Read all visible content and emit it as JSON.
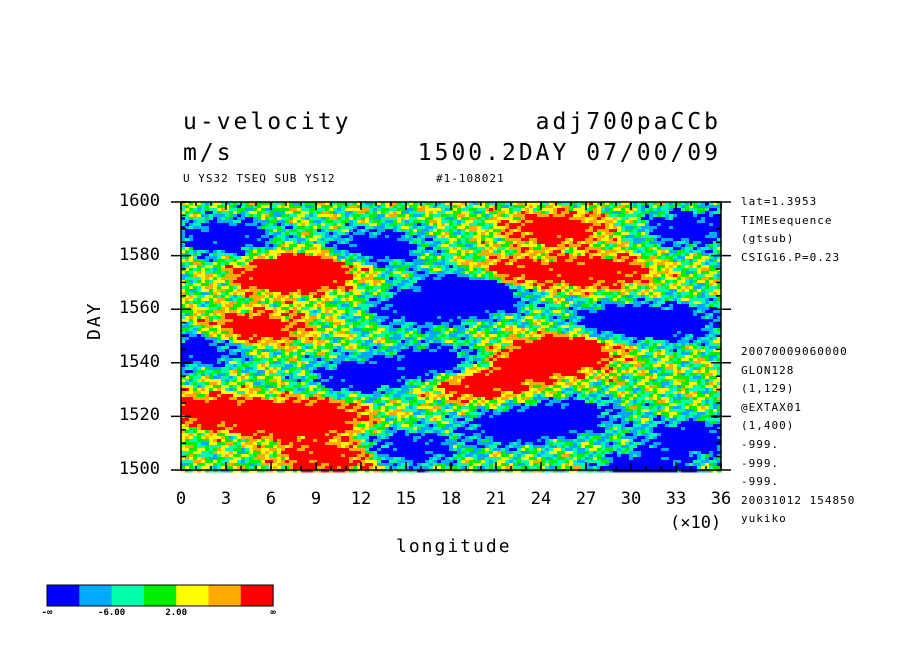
{
  "chart_data": {
    "type": "heatmap",
    "title_left": "u-velocity",
    "units": "m/s",
    "title_right": "adj700paCCb",
    "time_stamp": "1500.2DAY 07/00/09",
    "subtitle_left": "U YS32 TSEQ SUB YS12",
    "subtitle_right": "#1-108021",
    "xlabel": "longitude",
    "ylabel": "DAY",
    "x_multiplier": "(×10)",
    "xlim": [
      0,
      36
    ],
    "ylim": [
      1500,
      1600
    ],
    "x_ticks": [
      "0",
      "3",
      "6",
      "9",
      "12",
      "15",
      "18",
      "21",
      "24",
      "27",
      "30",
      "33",
      "36"
    ],
    "y_ticks": [
      "1500",
      "1520",
      "1540",
      "1560",
      "1580",
      "1600"
    ],
    "side_info_top": [
      "lat=1.3953",
      "TIMEsequence",
      "(gtsub)",
      "CSIG16.P=0.23"
    ],
    "side_info_bottom": [
      "20070009060000",
      "GLON128",
      "(1,129)",
      "@EXTAX01",
      "(1,400)",
      "-999.",
      "-999.",
      "-999.",
      "20031012 154850",
      "yukiko"
    ],
    "colorbar": {
      "colors": [
        "#0000ff",
        "#00aaff",
        "#00ffaa",
        "#00ee00",
        "#ffff00",
        "#ffaa00",
        "#ff0000"
      ],
      "labels": [
        "-∞",
        "-6.00",
        "2.00",
        "∞"
      ]
    },
    "pattern": {
      "red_blobs": [
        [
          8.5,
          1575
        ],
        [
          7,
          1572
        ],
        [
          9,
          1520
        ],
        [
          7,
          1518
        ],
        [
          5,
          1553
        ],
        [
          25,
          1590
        ],
        [
          26,
          1545
        ],
        [
          24,
          1540
        ],
        [
          28,
          1574
        ],
        [
          22,
          1573
        ],
        [
          10,
          1505
        ],
        [
          20,
          1532
        ],
        [
          2,
          1522
        ]
      ],
      "blue_blobs": [
        [
          19,
          1568
        ],
        [
          20,
          1565
        ],
        [
          16,
          1560
        ],
        [
          26,
          1520
        ],
        [
          22,
          1516
        ],
        [
          33,
          1555
        ],
        [
          34,
          1590
        ],
        [
          13,
          1583
        ],
        [
          34,
          1512
        ],
        [
          17,
          1540
        ],
        [
          3,
          1587
        ],
        [
          1,
          1545
        ],
        [
          15,
          1508
        ],
        [
          31,
          1500
        ],
        [
          12,
          1535
        ],
        [
          29,
          1555
        ]
      ]
    }
  }
}
